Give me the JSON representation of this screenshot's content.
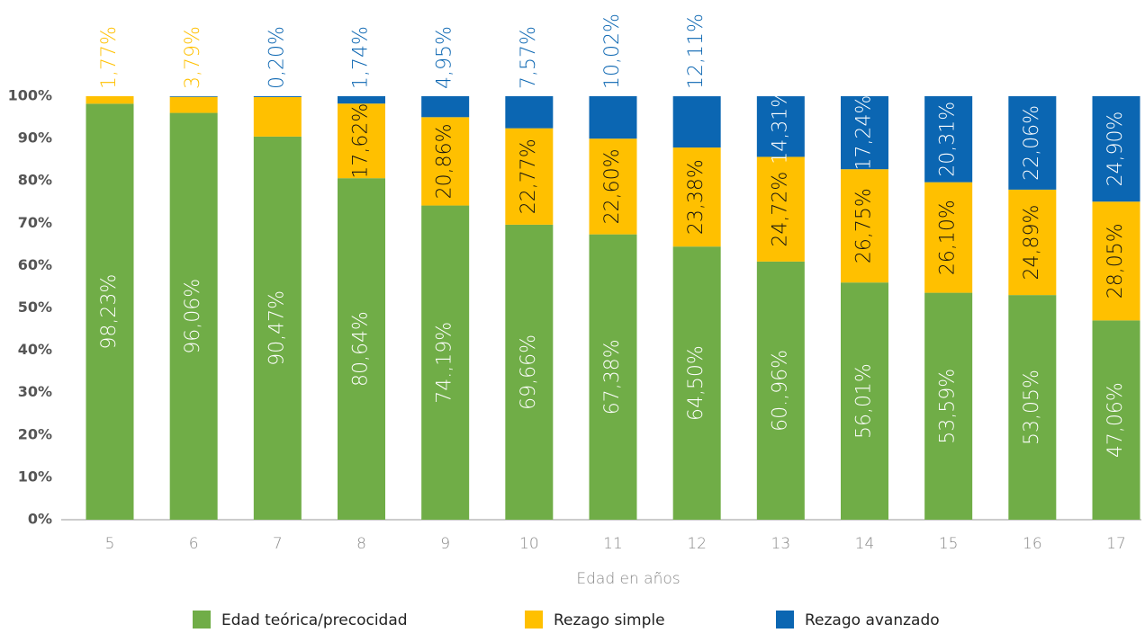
{
  "chart_data": {
    "type": "stacked_bar",
    "xlabel": "Edad en años",
    "categories": [
      "5",
      "6",
      "7",
      "8",
      "9",
      "10",
      "11",
      "12",
      "13",
      "14",
      "15",
      "16",
      "17"
    ],
    "series": [
      {
        "name": "Edad teórica/precocidad",
        "color": "#70ad47",
        "values": [
          98.23,
          96.06,
          90.47,
          80.64,
          74.19,
          69.66,
          67.38,
          64.5,
          60.96,
          56.01,
          53.59,
          53.05,
          47.06
        ],
        "value_labels": [
          "98,23%",
          "96,06%",
          "90,47%",
          "80,64%",
          "74.,19%",
          "69,66%",
          "67,38%",
          "64,50%",
          "60.,96%",
          "56,01%",
          "53,59%",
          "53,05%",
          "47,06%"
        ]
      },
      {
        "name": "Rezago simple",
        "color": "#ffc000",
        "values": [
          1.77,
          3.79,
          9.33,
          17.62,
          20.86,
          22.77,
          22.6,
          23.38,
          24.72,
          26.75,
          26.1,
          24.89,
          28.05
        ],
        "value_labels": [
          "1,77%",
          "3,79%",
          null,
          "17,62%",
          "20,86%",
          "22,77%",
          "22,60%",
          "23,38%",
          "24,72%",
          "26,75%",
          "26,10%",
          "24,89%",
          "28,05%"
        ]
      },
      {
        "name": "Rezago avanzado",
        "color": "#0b66b2",
        "values": [
          0,
          0.15,
          0.2,
          1.74,
          4.95,
          7.57,
          10.02,
          12.11,
          14.31,
          17.24,
          20.31,
          22.06,
          24.9
        ],
        "value_labels": [
          null,
          null,
          "0,20%",
          "1,74%",
          "4,95%",
          "7,57%",
          "10,02%",
          "12,11%",
          "14,31%",
          "17,24%",
          "20,31%",
          "22,06%",
          "24,90%"
        ]
      }
    ],
    "ylim": [
      0,
      100
    ],
    "yticks": [
      {
        "value": 0,
        "label": "0%"
      },
      {
        "value": 10,
        "label": "10%"
      },
      {
        "value": 20,
        "label": "20%"
      },
      {
        "value": 30,
        "label": "30%"
      },
      {
        "value": 40,
        "label": "40%"
      },
      {
        "value": 50,
        "label": "50%"
      },
      {
        "value": 60,
        "label": "60%"
      },
      {
        "value": 70,
        "label": "70%"
      },
      {
        "value": 80,
        "label": "80%"
      },
      {
        "value": 90,
        "label": "90%"
      },
      {
        "value": 100,
        "label": "100%"
      }
    ],
    "legend": "bottom"
  }
}
